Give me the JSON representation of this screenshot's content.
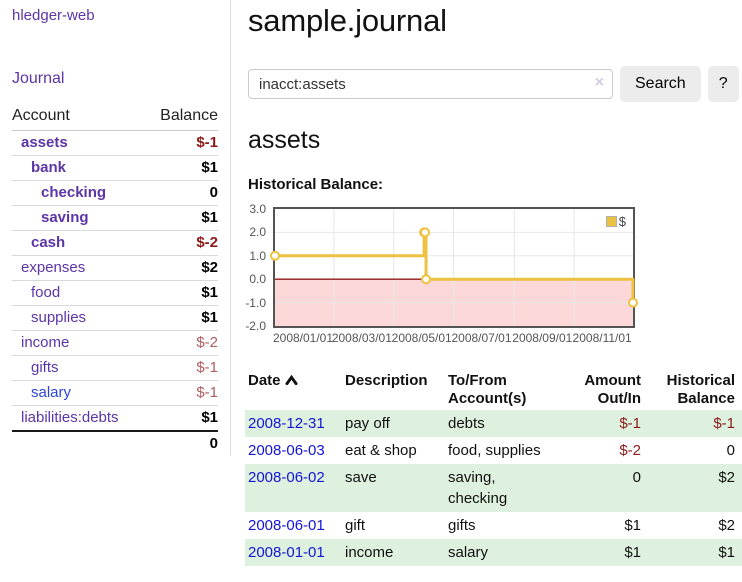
{
  "colors": {
    "purple": "#5c35a6",
    "blue": "#2b46d9",
    "link_blue": "#1315d6",
    "red_strong": "#8c1a1a",
    "red_muted": "#b05d60",
    "row_green": "#def0de",
    "button_bg": "#ececec",
    "chart_line": "#edc240",
    "chart_negative_fill": "#fcd8d8",
    "chart_zero_line": "#8f1a1a",
    "chart_grid": "#e7e7e7"
  },
  "app_title": "hledger-web",
  "sidebar": {
    "journal_link": "Journal",
    "accounts": {
      "headers": {
        "account": "Account",
        "balance": "Balance"
      },
      "rows": [
        {
          "name": "assets",
          "balance": "$-1",
          "level": 1,
          "bold": true,
          "neg": "strong"
        },
        {
          "name": "bank",
          "balance": "$1",
          "level": 2,
          "bold": true,
          "neg": ""
        },
        {
          "name": "checking",
          "balance": "0",
          "level": 3,
          "bold": true,
          "neg": ""
        },
        {
          "name": "saving",
          "balance": "$1",
          "level": 3,
          "bold": true,
          "neg": ""
        },
        {
          "name": "cash",
          "balance": "$-2",
          "level": 2,
          "bold": true,
          "neg": "strong"
        },
        {
          "name": "expenses",
          "balance": "$2",
          "level": 1,
          "bold": false,
          "neg": ""
        },
        {
          "name": "food",
          "balance": "$1",
          "level": 2,
          "bold": false,
          "neg": ""
        },
        {
          "name": "supplies",
          "balance": "$1",
          "level": 2,
          "bold": false,
          "neg": ""
        },
        {
          "name": "income",
          "balance": "$-2",
          "level": 1,
          "bold": false,
          "neg": "muted"
        },
        {
          "name": "gifts",
          "balance": "$-1",
          "level": 2,
          "bold": false,
          "neg": "muted"
        },
        {
          "name": "salary",
          "balance": "$-1",
          "level": 2,
          "bold": false,
          "neg": "muted",
          "link_color": "blue"
        },
        {
          "name": "liabilities:debts",
          "balance": "$1",
          "level": 1,
          "bold": false,
          "neg": ""
        }
      ],
      "total": "0"
    }
  },
  "header": {
    "title": "sample.journal"
  },
  "search": {
    "value": "inacct:assets",
    "clear_icon": "×",
    "search_button": "Search",
    "help_button": "?"
  },
  "account_page": {
    "title": "assets",
    "chart_heading": "Historical Balance:"
  },
  "chart_data": {
    "type": "line",
    "step": true,
    "title": "Historical Balance",
    "series": [
      {
        "name": "$",
        "color": "#edc240",
        "points": [
          {
            "date": "2008-01-01",
            "value": 1
          },
          {
            "date": "2008-06-01",
            "value": 2
          },
          {
            "date": "2008-06-02",
            "value": 2
          },
          {
            "date": "2008-06-03",
            "value": 0
          },
          {
            "date": "2008-12-31",
            "value": -1
          }
        ]
      }
    ],
    "x_start": "2008-01-01",
    "x_end": "2008-12-31",
    "xticks": [
      "2008/01/01",
      "2008/03/01",
      "2008/05/01",
      "2008/07/01",
      "2008/09/01",
      "2008/11/01"
    ],
    "yticks": [
      3.0,
      2.0,
      1.0,
      0.0,
      -1.0,
      -2.0
    ],
    "ylim": [
      -2,
      3
    ],
    "grid": true,
    "legend_position": "top-right",
    "legend": [
      {
        "label": "$",
        "color": "#edc240"
      }
    ],
    "negative_fill": "#fcd8d8",
    "zero_line_color": "#8f1a1a"
  },
  "transactions": {
    "headers": [
      "Date",
      "Description",
      "To/From Account(s)",
      "Amount Out/In",
      "Historical Balance"
    ],
    "sort_icon": "chevron-up",
    "rows": [
      {
        "date": "2008-12-31",
        "description": "pay off",
        "accounts": "debts",
        "amount": "$-1",
        "balance": "$-1",
        "amount_neg": true,
        "balance_neg": true
      },
      {
        "date": "2008-06-03",
        "description": "eat & shop",
        "accounts": "food, supplies",
        "amount": "$-2",
        "balance": "0",
        "amount_neg": true,
        "balance_neg": false
      },
      {
        "date": "2008-06-02",
        "description": "save",
        "accounts": "saving, checking",
        "amount": "0",
        "balance": "$2",
        "amount_neg": false,
        "balance_neg": false
      },
      {
        "date": "2008-06-01",
        "description": "gift",
        "accounts": "gifts",
        "amount": "$1",
        "balance": "$2",
        "amount_neg": false,
        "balance_neg": false
      },
      {
        "date": "2008-01-01",
        "description": "income",
        "accounts": "salary",
        "amount": "$1",
        "balance": "$1",
        "amount_neg": false,
        "balance_neg": false
      }
    ]
  }
}
